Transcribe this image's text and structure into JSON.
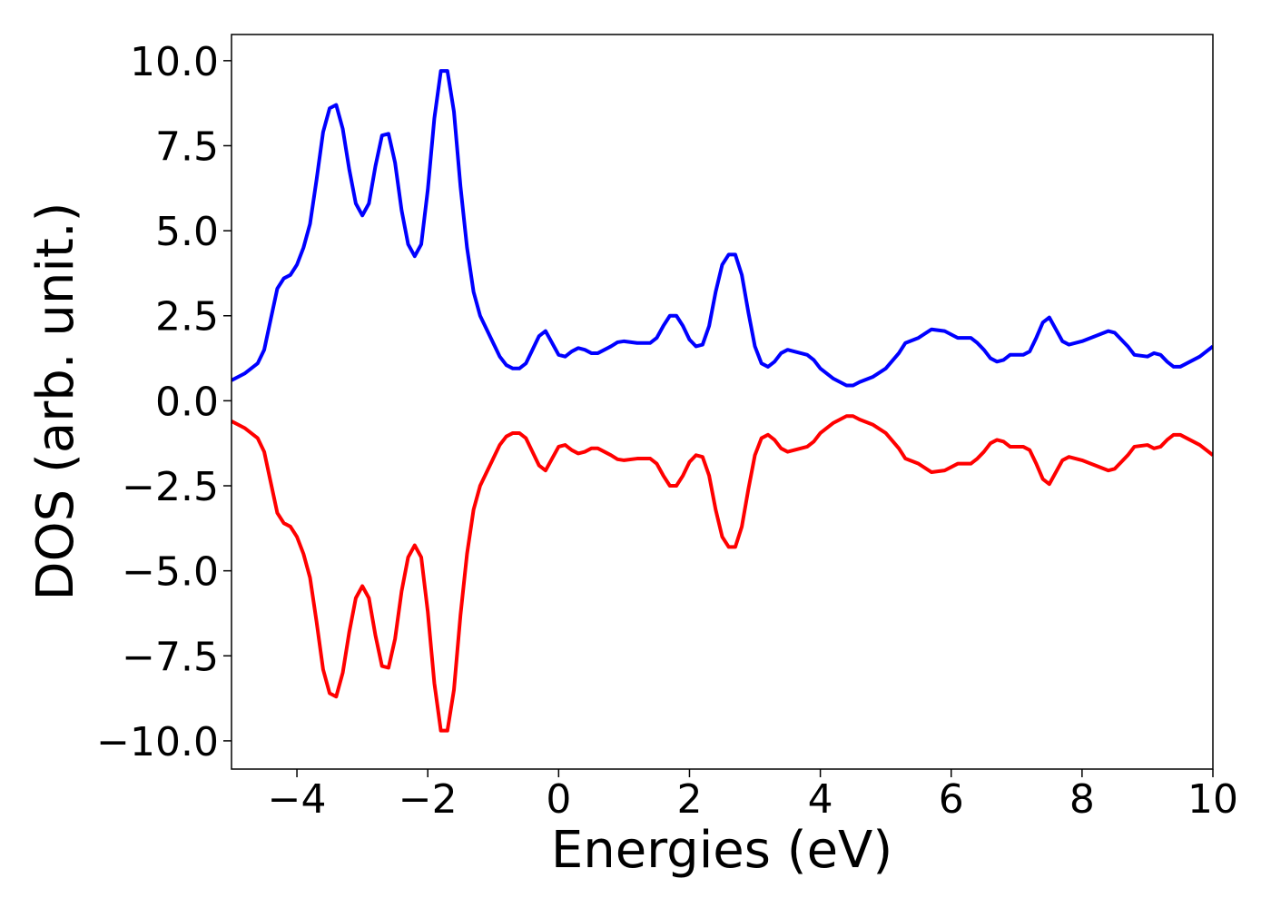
{
  "chart_data": {
    "type": "line",
    "xlabel": "Energies (eV)",
    "ylabel": "DOS (arb. unit.)",
    "x": [
      -5.0,
      -4.8,
      -4.6,
      -4.5,
      -4.4,
      -4.3,
      -4.2,
      -4.1,
      -4.0,
      -3.9,
      -3.8,
      -3.7,
      -3.6,
      -3.5,
      -3.4,
      -3.3,
      -3.2,
      -3.1,
      -3.0,
      -2.9,
      -2.8,
      -2.7,
      -2.6,
      -2.5,
      -2.4,
      -2.3,
      -2.2,
      -2.1,
      -2.0,
      -1.9,
      -1.8,
      -1.7,
      -1.6,
      -1.5,
      -1.4,
      -1.3,
      -1.2,
      -1.1,
      -1.0,
      -0.9,
      -0.8,
      -0.7,
      -0.6,
      -0.5,
      -0.4,
      -0.3,
      -0.2,
      -0.1,
      0.0,
      0.1,
      0.2,
      0.3,
      0.4,
      0.5,
      0.6,
      0.7,
      0.8,
      0.9,
      1.0,
      1.2,
      1.4,
      1.5,
      1.6,
      1.7,
      1.8,
      1.9,
      2.0,
      2.1,
      2.2,
      2.3,
      2.4,
      2.5,
      2.6,
      2.7,
      2.8,
      2.9,
      3.0,
      3.1,
      3.2,
      3.3,
      3.4,
      3.5,
      3.6,
      3.7,
      3.8,
      3.9,
      4.0,
      4.2,
      4.4,
      4.5,
      4.6,
      4.8,
      5.0,
      5.2,
      5.3,
      5.5,
      5.7,
      5.9,
      6.1,
      6.3,
      6.4,
      6.5,
      6.6,
      6.7,
      6.8,
      6.9,
      7.0,
      7.1,
      7.2,
      7.3,
      7.4,
      7.5,
      7.6,
      7.7,
      7.8,
      8.0,
      8.2,
      8.4,
      8.5,
      8.7,
      8.8,
      9.0,
      9.1,
      9.2,
      9.3,
      9.4,
      9.5,
      9.6,
      9.8,
      10.0
    ],
    "series": [
      {
        "color": "#0000ff",
        "values": [
          0.6,
          0.8,
          1.1,
          1.5,
          2.4,
          3.3,
          3.6,
          3.7,
          4.0,
          4.5,
          5.2,
          6.5,
          7.9,
          8.6,
          8.7,
          8.0,
          6.8,
          5.8,
          5.45,
          5.8,
          6.9,
          7.8,
          7.85,
          7.0,
          5.6,
          4.6,
          4.25,
          4.6,
          6.2,
          8.3,
          9.7,
          9.7,
          8.5,
          6.3,
          4.5,
          3.2,
          2.5,
          2.1,
          1.7,
          1.3,
          1.05,
          0.95,
          0.95,
          1.1,
          1.5,
          1.9,
          2.05,
          1.7,
          1.35,
          1.3,
          1.45,
          1.55,
          1.5,
          1.4,
          1.4,
          1.5,
          1.6,
          1.72,
          1.75,
          1.7,
          1.7,
          1.85,
          2.2,
          2.5,
          2.5,
          2.2,
          1.8,
          1.6,
          1.65,
          2.2,
          3.2,
          4.0,
          4.3,
          4.3,
          3.7,
          2.6,
          1.6,
          1.1,
          1.0,
          1.15,
          1.4,
          1.5,
          1.45,
          1.4,
          1.35,
          1.2,
          0.95,
          0.65,
          0.45,
          0.45,
          0.55,
          0.7,
          0.95,
          1.4,
          1.7,
          1.85,
          2.1,
          2.05,
          1.85,
          1.85,
          1.7,
          1.5,
          1.25,
          1.15,
          1.2,
          1.35,
          1.35,
          1.35,
          1.45,
          1.85,
          2.3,
          2.45,
          2.1,
          1.75,
          1.65,
          1.75,
          1.9,
          2.05,
          2.0,
          1.6,
          1.35,
          1.3,
          1.4,
          1.35,
          1.15,
          1.0,
          1.0,
          1.1,
          1.3,
          1.6
        ]
      },
      {
        "color": "#ff0000",
        "values": [
          -0.6,
          -0.8,
          -1.1,
          -1.5,
          -2.4,
          -3.3,
          -3.6,
          -3.7,
          -4.0,
          -4.5,
          -5.2,
          -6.5,
          -7.9,
          -8.6,
          -8.7,
          -8.0,
          -6.8,
          -5.8,
          -5.45,
          -5.8,
          -6.9,
          -7.8,
          -7.85,
          -7.0,
          -5.6,
          -4.6,
          -4.25,
          -4.6,
          -6.2,
          -8.3,
          -9.7,
          -9.7,
          -8.5,
          -6.3,
          -4.5,
          -3.2,
          -2.5,
          -2.1,
          -1.7,
          -1.3,
          -1.05,
          -0.95,
          -0.95,
          -1.1,
          -1.5,
          -1.9,
          -2.05,
          -1.7,
          -1.35,
          -1.3,
          -1.45,
          -1.55,
          -1.5,
          -1.4,
          -1.4,
          -1.5,
          -1.6,
          -1.72,
          -1.75,
          -1.7,
          -1.7,
          -1.85,
          -2.2,
          -2.5,
          -2.5,
          -2.2,
          -1.8,
          -1.6,
          -1.65,
          -2.2,
          -3.2,
          -4.0,
          -4.3,
          -4.3,
          -3.7,
          -2.6,
          -1.6,
          -1.1,
          -1.0,
          -1.15,
          -1.4,
          -1.5,
          -1.45,
          -1.4,
          -1.35,
          -1.2,
          -0.95,
          -0.65,
          -0.45,
          -0.45,
          -0.55,
          -0.7,
          -0.95,
          -1.4,
          -1.7,
          -1.85,
          -2.1,
          -2.05,
          -1.85,
          -1.85,
          -1.7,
          -1.5,
          -1.25,
          -1.15,
          -1.2,
          -1.35,
          -1.35,
          -1.35,
          -1.45,
          -1.85,
          -2.3,
          -2.45,
          -2.1,
          -1.75,
          -1.65,
          -1.75,
          -1.9,
          -2.05,
          -2.0,
          -1.6,
          -1.35,
          -1.3,
          -1.4,
          -1.35,
          -1.15,
          -1.0,
          -1.0,
          -1.1,
          -1.3,
          -1.6
        ]
      }
    ],
    "xlim": [
      -5,
      10
    ],
    "xticks": [
      {
        "value": -4,
        "label": "−4"
      },
      {
        "value": -2,
        "label": "−2"
      },
      0,
      2,
      4,
      6,
      8,
      10
    ],
    "ylim": [
      -10.83,
      10.77
    ],
    "yticks": [
      {
        "value": -10,
        "label": "−10.0"
      },
      {
        "value": -7.5,
        "label": "−7.5"
      },
      {
        "value": -5,
        "label": "−5.0"
      },
      {
        "value": -2.5,
        "label": "−2.5"
      },
      {
        "value": 0,
        "label": "0.0"
      },
      {
        "value": 2.5,
        "label": "2.5"
      },
      {
        "value": 5,
        "label": "5.0"
      },
      {
        "value": 7.5,
        "label": "7.5"
      },
      {
        "value": 10,
        "label": "10.0"
      }
    ],
    "grid": false
  }
}
